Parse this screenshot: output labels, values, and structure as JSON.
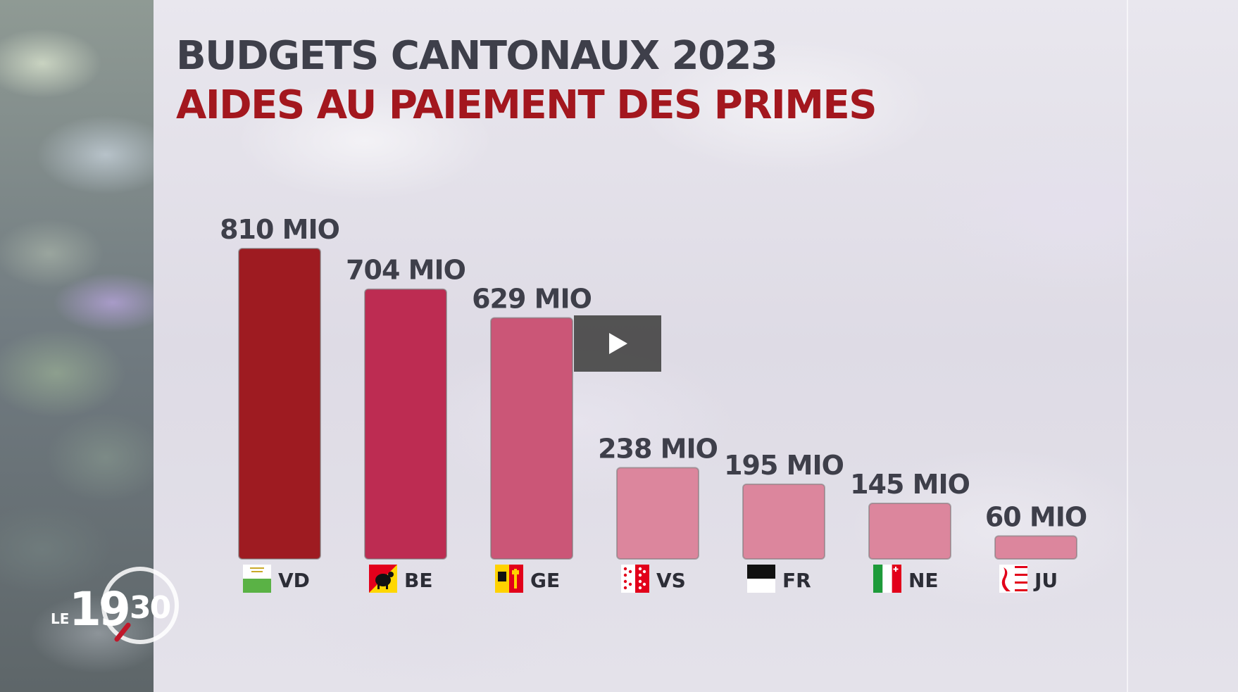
{
  "title": {
    "line1": "BUDGETS CANTONAUX 2023",
    "line2": "AIDES AU PAIEMENT DES PRIMES",
    "line1_color": "#3e3f4a",
    "line2_color": "#a3171e"
  },
  "chart_data": {
    "type": "bar",
    "categories": [
      "VD",
      "BE",
      "GE",
      "VS",
      "FR",
      "NE",
      "JU"
    ],
    "values": [
      810,
      704,
      629,
      238,
      195,
      145,
      60
    ],
    "value_labels": [
      "810 MIO",
      "704 MIO",
      "629 MIO",
      "238 MIO",
      "195 MIO",
      "145 MIO",
      "60 MIO"
    ],
    "bar_colors": [
      "#9e1b21",
      "#bd2c52",
      "#cb5677",
      "#dc869d",
      "#dc869d",
      "#dc869d",
      "#dc869d"
    ],
    "flag_icons": [
      "vaud-flag-icon",
      "bern-flag-icon",
      "geneva-flag-icon",
      "valais-flag-icon",
      "fribourg-flag-icon",
      "neuchatel-flag-icon",
      "jura-flag-icon"
    ],
    "ylim": [
      0,
      810
    ],
    "grid": false,
    "legend": "none"
  },
  "player": {
    "play_icon": "play-icon"
  },
  "broadcast_logo": {
    "prefix": "LE",
    "hour": "19",
    "minutes": "30"
  }
}
